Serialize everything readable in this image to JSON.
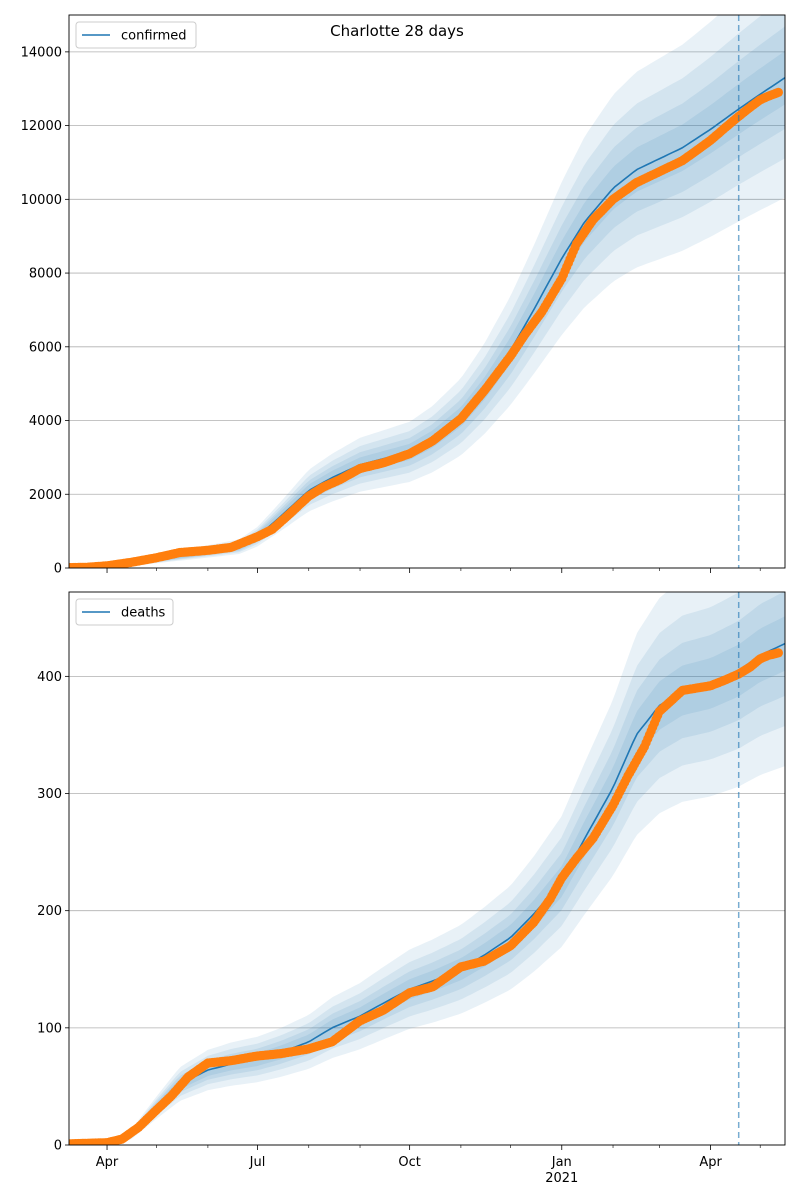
{
  "title": "Charlotte 28 days",
  "colors": {
    "model_line": "#1f77b4",
    "observed_points": "#ff7f0e",
    "band": "#1f77b4",
    "grid": "#b0b0b0",
    "forecast_marker": "#1f77b4"
  },
  "x_axis": {
    "start": "2020-03-09",
    "end": "2021-05-16",
    "ticks": [
      {
        "date": "2020-04-01",
        "label": "Apr",
        "sublabel": ""
      },
      {
        "date": "2020-07-01",
        "label": "Jul",
        "sublabel": ""
      },
      {
        "date": "2020-10-01",
        "label": "Oct",
        "sublabel": ""
      },
      {
        "date": "2021-01-01",
        "label": "Jan",
        "sublabel": "2021"
      },
      {
        "date": "2021-04-01",
        "label": "Apr",
        "sublabel": ""
      }
    ],
    "minor_tick_dates": [
      "2020-05-01",
      "2020-06-01",
      "2020-08-01",
      "2020-09-01",
      "2020-11-01",
      "2020-12-01",
      "2021-02-01",
      "2021-03-01",
      "2021-05-01"
    ]
  },
  "forecast_start": "2021-04-18",
  "chart_data": [
    {
      "type": "line",
      "legend": "confirmed",
      "legend_position": "upper-left",
      "grid": "horizontal",
      "ylim": [
        0,
        15000
      ],
      "yticks": [
        0,
        2000,
        4000,
        6000,
        8000,
        10000,
        12000,
        14000
      ],
      "model": {
        "x": [
          "2020-03-09",
          "2020-04-01",
          "2020-05-01",
          "2020-06-01",
          "2020-06-20",
          "2020-07-01",
          "2020-07-15",
          "2020-08-01",
          "2020-08-15",
          "2020-09-01",
          "2020-10-01",
          "2020-10-15",
          "2020-11-01",
          "2020-11-15",
          "2020-12-01",
          "2020-12-15",
          "2021-01-01",
          "2021-01-15",
          "2021-02-01",
          "2021-02-15",
          "2021-03-01",
          "2021-03-15",
          "2021-04-01",
          "2021-04-18",
          "2021-05-01",
          "2021-05-16"
        ],
        "y": [
          0,
          50,
          250,
          450,
          580,
          850,
          1400,
          2100,
          2450,
          2800,
          3150,
          3500,
          4100,
          4850,
          5900,
          7000,
          8400,
          9400,
          10300,
          10800,
          11100,
          11400,
          11900,
          12450,
          12850,
          13300
        ],
        "band_widths": [
          0.05,
          0.1,
          0.16,
          0.24
        ]
      },
      "observed": {
        "x": [
          "2020-03-09",
          "2020-03-20",
          "2020-04-01",
          "2020-04-15",
          "2020-05-01",
          "2020-05-15",
          "2020-06-01",
          "2020-06-15",
          "2020-07-01",
          "2020-07-10",
          "2020-07-20",
          "2020-08-01",
          "2020-08-10",
          "2020-08-20",
          "2020-09-01",
          "2020-09-15",
          "2020-10-01",
          "2020-10-15",
          "2020-11-01",
          "2020-11-15",
          "2020-12-01",
          "2020-12-10",
          "2020-12-20",
          "2021-01-01",
          "2021-01-10",
          "2021-01-20",
          "2021-02-01",
          "2021-02-15",
          "2021-03-01",
          "2021-03-15",
          "2021-04-01",
          "2021-04-10",
          "2021-04-18",
          "2021-04-25",
          "2021-05-01",
          "2021-05-06",
          "2021-05-12"
        ],
        "y": [
          10,
          20,
          60,
          150,
          280,
          420,
          480,
          560,
          850,
          1050,
          1450,
          1950,
          2200,
          2400,
          2700,
          2850,
          3100,
          3450,
          4050,
          4800,
          5750,
          6350,
          6950,
          7850,
          8800,
          9450,
          10000,
          10450,
          10750,
          11050,
          11600,
          11950,
          12250,
          12500,
          12700,
          12800,
          12900
        ]
      }
    },
    {
      "type": "line",
      "legend": "deaths",
      "legend_position": "upper-left",
      "grid": "horizontal",
      "ylim": [
        0,
        472
      ],
      "yticks": [
        0,
        100,
        200,
        300,
        400
      ],
      "model": {
        "x": [
          "2020-03-09",
          "2020-04-01",
          "2020-04-15",
          "2020-05-01",
          "2020-05-15",
          "2020-06-01",
          "2020-06-15",
          "2020-07-01",
          "2020-07-15",
          "2020-08-01",
          "2020-08-15",
          "2020-09-01",
          "2020-09-15",
          "2020-10-01",
          "2020-10-15",
          "2020-11-01",
          "2020-11-15",
          "2020-12-01",
          "2020-12-15",
          "2021-01-01",
          "2021-01-15",
          "2021-02-01",
          "2021-02-15",
          "2021-03-01",
          "2021-03-15",
          "2021-04-01",
          "2021-04-18",
          "2021-05-01",
          "2021-05-16"
        ],
        "y": [
          0,
          1,
          8,
          32,
          52,
          64,
          69,
          73,
          79,
          88,
          100,
          110,
          121,
          133,
          140,
          150,
          162,
          177,
          197,
          225,
          262,
          305,
          350,
          375,
          388,
          394,
          405,
          418,
          428
        ],
        "band_widths": [
          0.05,
          0.1,
          0.16,
          0.24
        ]
      },
      "observed": {
        "x": [
          "2020-03-09",
          "2020-04-01",
          "2020-04-10",
          "2020-04-20",
          "2020-05-01",
          "2020-05-10",
          "2020-05-20",
          "2020-06-01",
          "2020-06-15",
          "2020-07-01",
          "2020-07-15",
          "2020-08-01",
          "2020-08-15",
          "2020-09-01",
          "2020-09-15",
          "2020-10-01",
          "2020-10-15",
          "2020-11-01",
          "2020-11-15",
          "2020-12-01",
          "2020-12-15",
          "2020-12-25",
          "2021-01-01",
          "2021-01-10",
          "2021-01-20",
          "2021-02-01",
          "2021-02-10",
          "2021-02-20",
          "2021-03-01",
          "2021-03-15",
          "2021-04-01",
          "2021-04-10",
          "2021-04-18",
          "2021-04-25",
          "2021-05-01",
          "2021-05-06",
          "2021-05-12"
        ],
        "y": [
          1,
          2,
          5,
          15,
          30,
          42,
          58,
          70,
          72,
          76,
          78,
          82,
          88,
          106,
          115,
          130,
          135,
          152,
          157,
          170,
          190,
          210,
          228,
          245,
          262,
          290,
          315,
          340,
          370,
          388,
          392,
          397,
          402,
          408,
          415,
          418,
          420
        ]
      }
    }
  ]
}
